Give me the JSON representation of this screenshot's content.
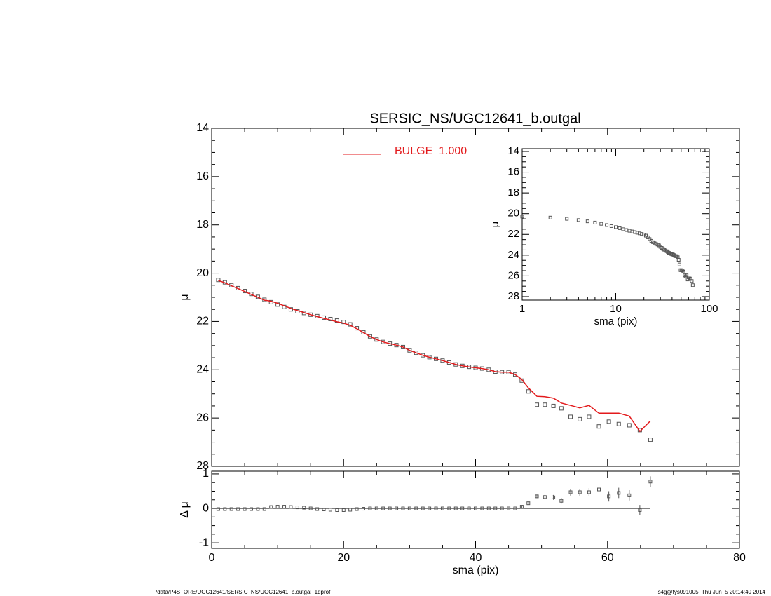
{
  "chart_data": [
    {
      "type": "scatter",
      "title": "SERSIC_NS/UGC12641_b.outgal",
      "ylabel": "μ",
      "ylim": [
        14,
        28
      ],
      "y_reversed": true,
      "yticks": [
        14,
        16,
        18,
        20,
        22,
        24,
        26,
        28
      ],
      "legend": "top-center",
      "x": [
        1,
        2,
        3,
        4,
        5,
        6,
        7,
        8,
        9,
        10,
        11,
        12,
        13,
        14,
        15,
        16,
        17,
        18,
        19,
        20,
        21,
        22,
        23,
        24,
        25,
        26,
        27,
        28,
        29,
        30,
        31,
        32,
        33,
        34,
        35,
        36,
        37,
        38,
        39,
        40,
        41,
        42,
        43,
        44,
        45,
        46,
        47,
        48,
        49.3,
        50.5,
        51.8,
        53,
        54.4,
        55.8,
        57.2,
        58.7,
        60.2,
        61.7,
        63.3,
        64.9,
        66.5
      ],
      "series": [
        {
          "color": "#555555",
          "marker": "square",
          "values": [
            20.28,
            20.38,
            20.5,
            20.62,
            20.74,
            20.86,
            20.98,
            21.1,
            21.2,
            21.3,
            21.4,
            21.5,
            21.58,
            21.65,
            21.72,
            21.78,
            21.84,
            21.9,
            21.96,
            22.02,
            22.12,
            22.28,
            22.45,
            22.62,
            22.75,
            22.85,
            22.92,
            22.98,
            23.06,
            23.2,
            23.3,
            23.4,
            23.48,
            23.55,
            23.62,
            23.7,
            23.78,
            23.84,
            23.88,
            23.92,
            23.95,
            24.0,
            24.08,
            24.1,
            24.1,
            24.2,
            24.45,
            24.9,
            25.45,
            25.45,
            25.5,
            25.6,
            25.95,
            26.05,
            25.95,
            26.35,
            26.15,
            26.25,
            26.3,
            26.5,
            26.9
          ]
        },
        {
          "name": "BULGE  1.000",
          "color": "#e31a1c",
          "marker": "line",
          "values": [
            20.3,
            20.4,
            20.52,
            20.64,
            20.76,
            20.88,
            21.0,
            21.12,
            21.16,
            21.25,
            21.35,
            21.46,
            21.55,
            21.63,
            21.72,
            21.8,
            21.87,
            21.94,
            22.01,
            22.07,
            22.16,
            22.3,
            22.46,
            22.62,
            22.75,
            22.85,
            22.92,
            22.98,
            23.06,
            23.2,
            23.3,
            23.4,
            23.48,
            23.55,
            23.62,
            23.7,
            23.78,
            23.84,
            23.88,
            23.92,
            23.95,
            24.0,
            24.08,
            24.1,
            24.1,
            24.2,
            24.4,
            24.75,
            25.1,
            25.12,
            25.18,
            25.38,
            25.48,
            25.58,
            25.48,
            25.8,
            25.8,
            25.8,
            25.92,
            26.55,
            26.12
          ]
        }
      ]
    },
    {
      "type": "errorbar",
      "ylabel": "Δ μ",
      "xlabel": "sma (pix)",
      "xlim": [
        0,
        80
      ],
      "xticks": [
        0,
        20,
        40,
        60,
        80
      ],
      "ylim": [
        -1.16,
        1.08
      ],
      "yticks": [
        -1,
        0,
        1
      ],
      "color": "#555555",
      "values": [
        -0.02,
        -0.02,
        -0.02,
        -0.02,
        -0.02,
        -0.02,
        -0.02,
        -0.02,
        0.04,
        0.05,
        0.05,
        0.04,
        0.03,
        0.02,
        0.0,
        -0.02,
        -0.03,
        -0.04,
        -0.05,
        -0.05,
        -0.04,
        -0.02,
        -0.01,
        0,
        0,
        0,
        0,
        0,
        0,
        0,
        0,
        0,
        0,
        0,
        0,
        0,
        0,
        0,
        0,
        0,
        0,
        0,
        0,
        0,
        0,
        0,
        0.05,
        0.15,
        0.35,
        0.33,
        0.32,
        0.22,
        0.47,
        0.47,
        0.47,
        0.55,
        0.35,
        0.45,
        0.38,
        -0.05,
        0.78
      ],
      "errors": [
        0,
        0,
        0,
        0,
        0,
        0,
        0,
        0,
        0,
        0,
        0,
        0,
        0,
        0,
        0,
        0,
        0,
        0,
        0,
        0,
        0,
        0,
        0,
        0,
        0,
        0,
        0,
        0,
        0,
        0,
        0,
        0,
        0,
        0,
        0,
        0,
        0,
        0,
        0,
        0,
        0,
        0,
        0,
        0,
        0,
        0,
        0.03,
        0.04,
        0.05,
        0.06,
        0.07,
        0.08,
        0.1,
        0.1,
        0.12,
        0.14,
        0.15,
        0.15,
        0.15,
        0.15,
        0.15
      ]
    },
    {
      "type": "inset",
      "xlabel": "sma (pix)",
      "ylabel": "μ",
      "log_x": true,
      "xlim": [
        1,
        100
      ],
      "xticks": [
        1,
        10,
        100
      ],
      "ylim": [
        13.73,
        28.34
      ],
      "y_reversed": true,
      "yticks": [
        14,
        16,
        18,
        20,
        22,
        24,
        26,
        28
      ]
    }
  ],
  "footer": {
    "path": "/data/P4STORE/UGC12641/SERSIC_NS/UGC12641_b.outgal_1dprof",
    "stamp": "s4g@fys091005  Thu Jun  5 20:14:40 2014"
  }
}
